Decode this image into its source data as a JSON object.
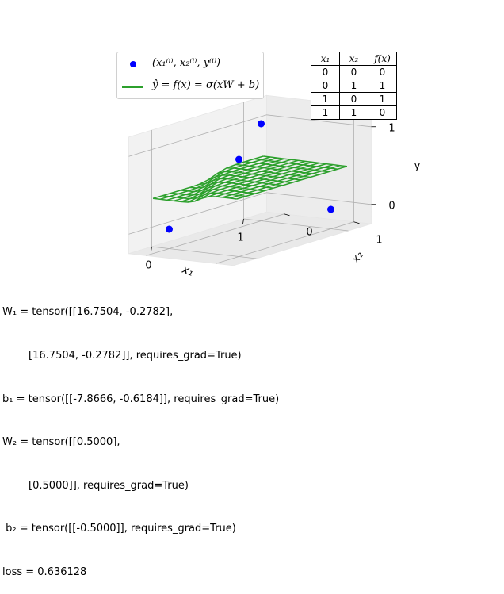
{
  "chart_data": {
    "type": "surface3d",
    "legend": {
      "points_label": "(x₁⁽ⁱ⁾, x₂⁽ⁱ⁾, y⁽ⁱ⁾)",
      "surface_label": "ŷ = f(x) = σ(xW + b)"
    },
    "axes": {
      "xlabel": "x₁",
      "ylabel": "x₂",
      "zlabel": "y",
      "x_ticks": [
        "0",
        "1"
      ],
      "y_ticks": [
        "0",
        "1"
      ],
      "z_ticks": [
        "0",
        "1"
      ],
      "xlim": [
        -0.25,
        1.25
      ],
      "ylim": [
        -0.25,
        1.25
      ],
      "zlim": [
        -0.25,
        1.25
      ]
    },
    "points": [
      {
        "x1": 0,
        "x2": 0,
        "y": 0
      },
      {
        "x1": 0,
        "x2": 1,
        "y": 1
      },
      {
        "x1": 1,
        "x2": 0,
        "y": 1
      },
      {
        "x1": 1,
        "x2": 1,
        "y": 0
      }
    ],
    "surface": {
      "grid_min": -0.1,
      "grid_max": 1.1,
      "grid_steps": 13,
      "color": "#2ca02c",
      "point_color": "#0000ff"
    },
    "truth_table": {
      "headers": [
        "x₁",
        "x₂",
        "f(x)"
      ],
      "rows": [
        [
          "0",
          "0",
          "0"
        ],
        [
          "0",
          "1",
          "1"
        ],
        [
          "1",
          "0",
          "1"
        ],
        [
          "1",
          "1",
          "0"
        ]
      ]
    },
    "parameters": [
      "W₁ = tensor([[16.7504, -0.2782],",
      "        [16.7504, -0.2782]], requires_grad=True)",
      "b₁ = tensor([[-7.8666, -0.6184]], requires_grad=True)",
      "W₂ = tensor([[0.5000],",
      "        [0.5000]], requires_grad=True)",
      " b₂ = tensor([[-0.5000]], requires_grad=True)",
      "loss = 0.636128"
    ]
  }
}
